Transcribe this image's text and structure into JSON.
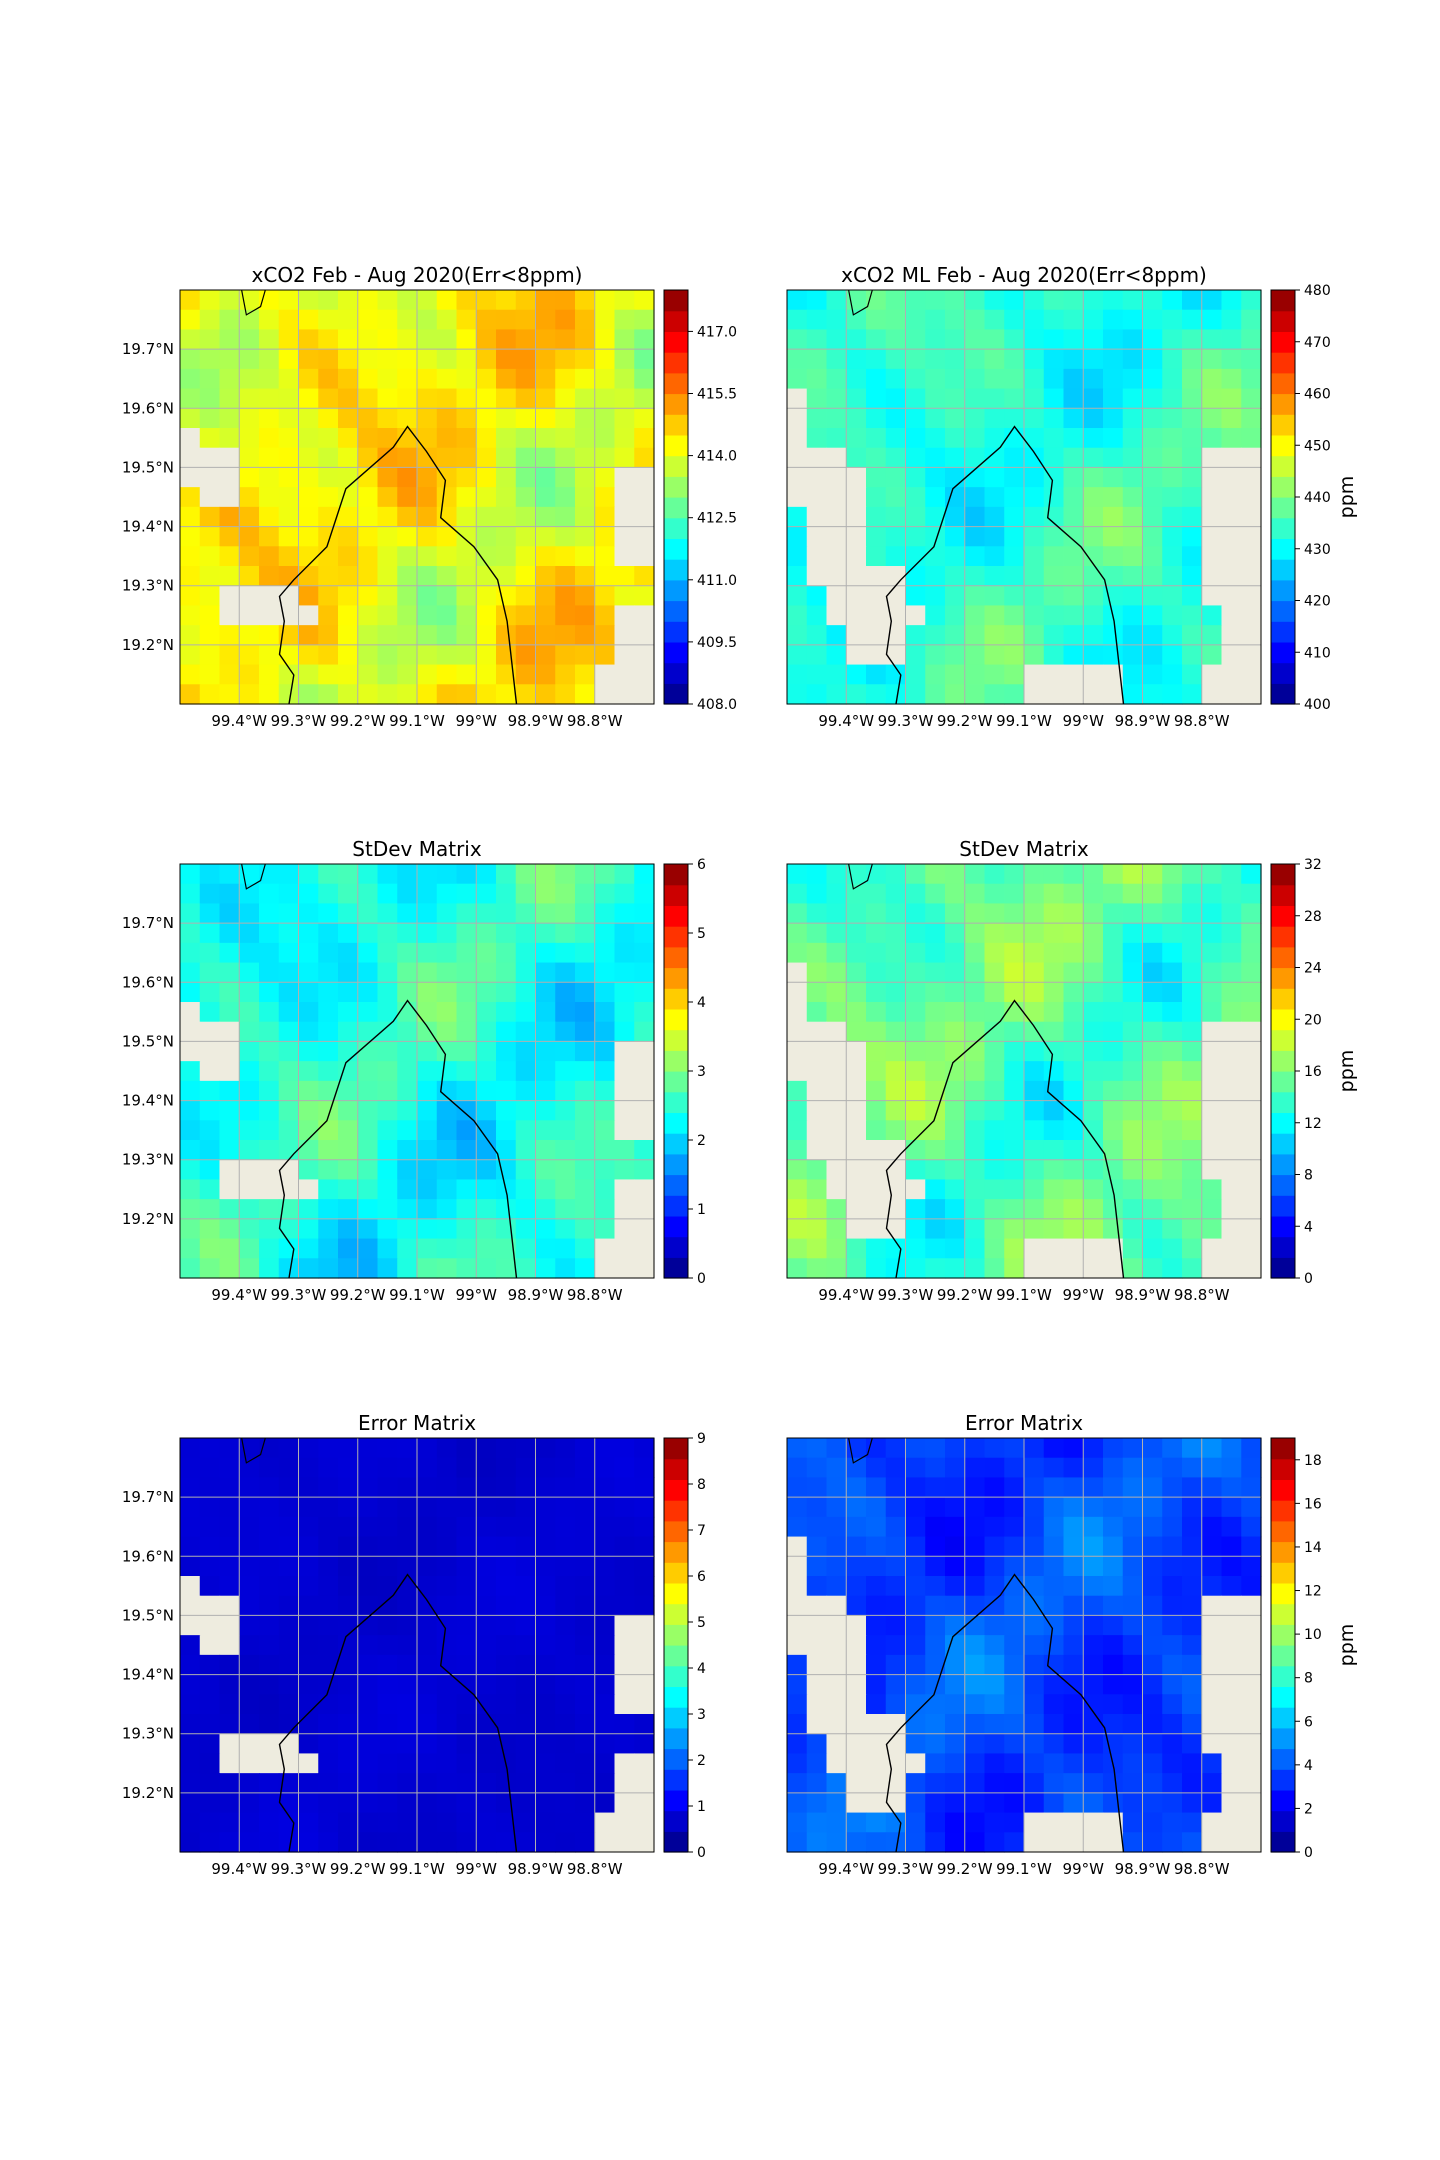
{
  "chart_data": [
    {
      "type": "heatmap",
      "title": "xCO2 Feb - Aug 2020(Err<8ppm)",
      "xticks": [
        "99.4°W",
        "99.3°W",
        "99.2°W",
        "99.1°W",
        "99°W",
        "98.9°W",
        "98.8°W"
      ],
      "yticks": [
        "19.7°N",
        "19.6°N",
        "19.5°N",
        "19.4°N",
        "19.3°N",
        "19.2°N"
      ],
      "xlim": [
        -99.5,
        -98.7
      ],
      "ylim": [
        19.1,
        19.8
      ],
      "colorbar": {
        "ticks": [
          "408.0",
          "409.5",
          "411.0",
          "412.5",
          "414.0",
          "415.5",
          "417.0"
        ],
        "min": 408.0,
        "max": 418.0,
        "unit": ""
      },
      "grid": true
    },
    {
      "type": "heatmap",
      "title": "xCO2 ML Feb - Aug 2020(Err<8ppm)",
      "xticks": [
        "99.4°W",
        "99.3°W",
        "99.2°W",
        "99.1°W",
        "99°W",
        "98.9°W",
        "98.8°W"
      ],
      "yticks": [],
      "xlim": [
        -99.5,
        -98.7
      ],
      "ylim": [
        19.1,
        19.8
      ],
      "colorbar": {
        "ticks": [
          "400",
          "410",
          "420",
          "430",
          "440",
          "450",
          "460",
          "470",
          "480"
        ],
        "min": 400,
        "max": 480,
        "unit": "ppm"
      },
      "grid": true
    },
    {
      "type": "heatmap",
      "title": "StDev Matrix",
      "xticks": [
        "99.4°W",
        "99.3°W",
        "99.2°W",
        "99.1°W",
        "99°W",
        "98.9°W",
        "98.8°W"
      ],
      "yticks": [
        "19.7°N",
        "19.6°N",
        "19.5°N",
        "19.4°N",
        "19.3°N",
        "19.2°N"
      ],
      "xlim": [
        -99.5,
        -98.7
      ],
      "ylim": [
        19.1,
        19.8
      ],
      "colorbar": {
        "ticks": [
          "0",
          "1",
          "2",
          "3",
          "4",
          "5",
          "6"
        ],
        "min": 0,
        "max": 6,
        "unit": ""
      },
      "grid": true
    },
    {
      "type": "heatmap",
      "title": "StDev Matrix",
      "xticks": [
        "99.4°W",
        "99.3°W",
        "99.2°W",
        "99.1°W",
        "99°W",
        "98.9°W",
        "98.8°W"
      ],
      "yticks": [],
      "xlim": [
        -99.5,
        -98.7
      ],
      "ylim": [
        19.1,
        19.8
      ],
      "colorbar": {
        "ticks": [
          "0",
          "4",
          "8",
          "12",
          "16",
          "20",
          "24",
          "28",
          "32"
        ],
        "min": 0,
        "max": 32,
        "unit": "ppm"
      },
      "grid": true
    },
    {
      "type": "heatmap",
      "title": "Error Matrix",
      "xticks": [
        "99.4°W",
        "99.3°W",
        "99.2°W",
        "99.1°W",
        "99°W",
        "98.9°W",
        "98.8°W"
      ],
      "yticks": [
        "19.7°N",
        "19.6°N",
        "19.5°N",
        "19.4°N",
        "19.3°N",
        "19.2°N"
      ],
      "xlim": [
        -99.5,
        -98.7
      ],
      "ylim": [
        19.1,
        19.8
      ],
      "colorbar": {
        "ticks": [
          "0",
          "1",
          "2",
          "3",
          "4",
          "5",
          "6",
          "7",
          "8",
          "9"
        ],
        "min": 0,
        "max": 9,
        "unit": ""
      },
      "grid": true
    },
    {
      "type": "heatmap",
      "title": "Error Matrix",
      "xticks": [
        "99.4°W",
        "99.3°W",
        "99.2°W",
        "99.1°W",
        "99°W",
        "98.9°W",
        "98.8°W"
      ],
      "yticks": [],
      "xlim": [
        -99.5,
        -98.7
      ],
      "ylim": [
        19.1,
        19.8
      ],
      "colorbar": {
        "ticks": [
          "0",
          "2",
          "4",
          "6",
          "8",
          "10",
          "12",
          "14",
          "16",
          "18"
        ],
        "min": 0,
        "max": 19,
        "unit": "ppm"
      },
      "grid": true
    }
  ],
  "colors": {
    "missing_data": "#eeecdf",
    "grid": "#b0b0b0",
    "boundary": "#000000",
    "colormap": "jet"
  }
}
